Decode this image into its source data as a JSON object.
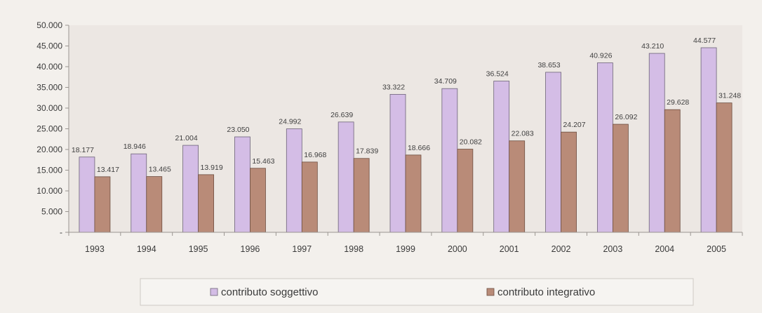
{
  "chart_data": {
    "type": "bar",
    "categories": [
      "1993",
      "1994",
      "1995",
      "1996",
      "1997",
      "1998",
      "1999",
      "2000",
      "2001",
      "2002",
      "2003",
      "2004",
      "2005"
    ],
    "series": [
      {
        "name": "contributo soggettivo",
        "color": "#d4bde6",
        "values": [
          18177,
          18946,
          21004,
          23050,
          24992,
          26639,
          33322,
          34709,
          36524,
          38653,
          40926,
          43210,
          44577
        ],
        "labels": [
          "18.177",
          "18.946",
          "21.004",
          "23.050",
          "24.992",
          "26.639",
          "33.322",
          "34.709",
          "36.524",
          "38.653",
          "40.926",
          "43.210",
          "44.577"
        ]
      },
      {
        "name": "contributo integrativo",
        "color": "#b98b78",
        "values": [
          13417,
          13465,
          13919,
          15463,
          16968,
          17839,
          18666,
          20082,
          22083,
          24207,
          26092,
          29628,
          31248
        ],
        "labels": [
          "13.417",
          "13.465",
          "13.919",
          "15.463",
          "16.968",
          "17.839",
          "18.666",
          "20.082",
          "22.083",
          "24.207",
          "26.092",
          "29.628",
          "31.248"
        ]
      }
    ],
    "ylim": [
      0,
      50000
    ],
    "yticks": [
      0,
      5000,
      10000,
      15000,
      20000,
      25000,
      30000,
      35000,
      40000,
      45000,
      50000
    ],
    "ytick_labels": [
      "-",
      "5.000",
      "10.000",
      "15.000",
      "20.000",
      "25.000",
      "30.000",
      "35.000",
      "40.000",
      "45.000",
      "50.000"
    ],
    "grid": false,
    "legend": "bottom-center",
    "title": "",
    "xlabel": "",
    "ylabel": ""
  }
}
